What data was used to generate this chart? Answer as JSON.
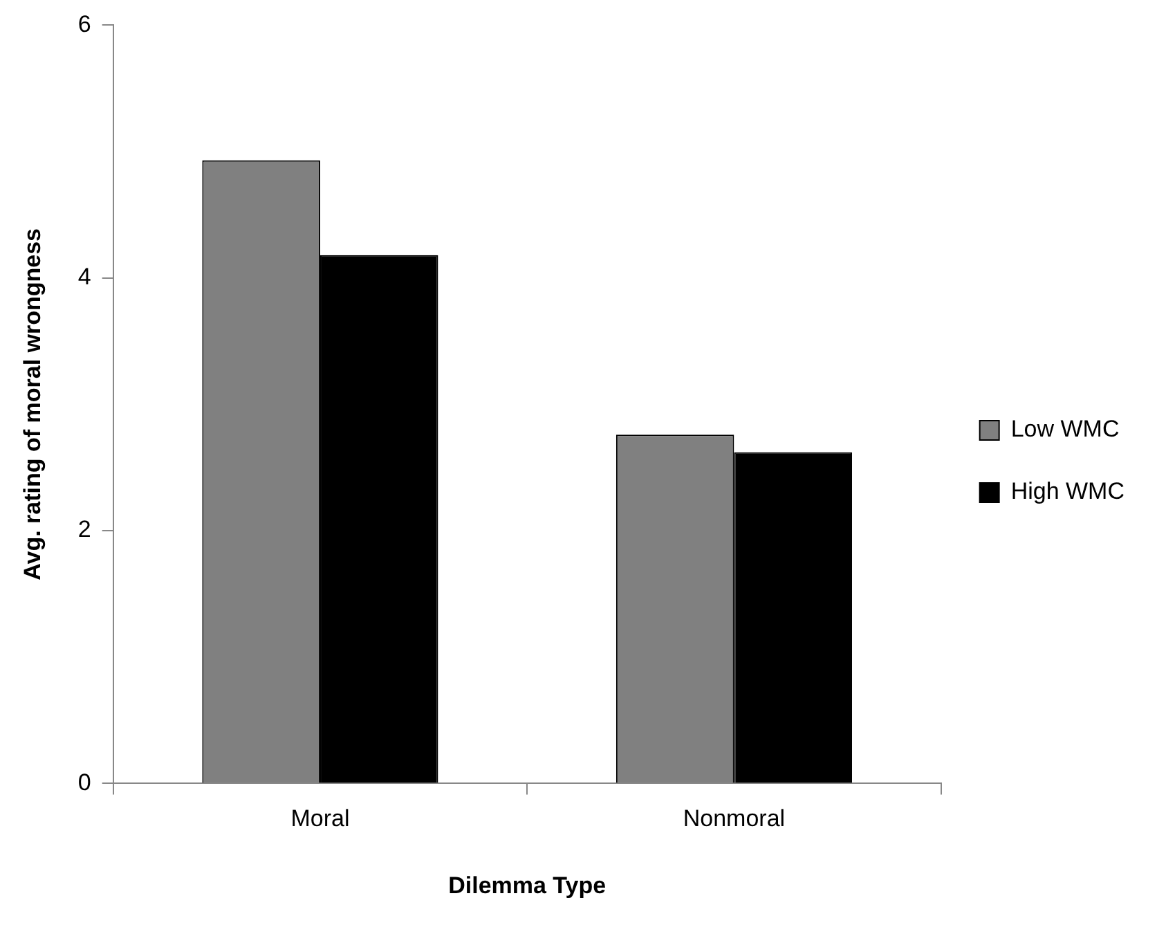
{
  "chart_data": {
    "type": "bar",
    "xlabel": "Dilemma Type",
    "ylabel": "Avg. rating of moral wrongness",
    "categories": [
      "Moral",
      "Nonmoral"
    ],
    "series": [
      {
        "name": "Low WMC",
        "color": "#808080",
        "values": [
          4.93,
          2.76
        ]
      },
      {
        "name": "High WMC",
        "color": "#000000",
        "values": [
          4.18,
          2.62
        ]
      }
    ],
    "ylim": [
      0,
      6
    ],
    "yticks": [
      0,
      2,
      4,
      6
    ],
    "grid": false,
    "legend": "right"
  }
}
